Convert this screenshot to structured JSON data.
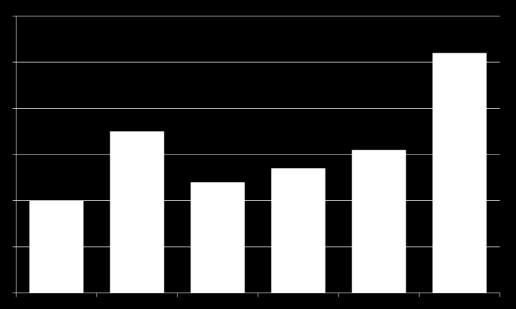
{
  "chart_data": {
    "type": "bar",
    "categories": [
      null,
      null,
      null,
      null,
      null,
      null
    ],
    "values": [
      2.0,
      3.5,
      2.4,
      2.7,
      3.1,
      5.2
    ],
    "color": "#ffffff",
    "ylim": [
      0,
      6
    ],
    "yticks": [
      0,
      1,
      2,
      3,
      4,
      5,
      6
    ],
    "grid": true
  }
}
